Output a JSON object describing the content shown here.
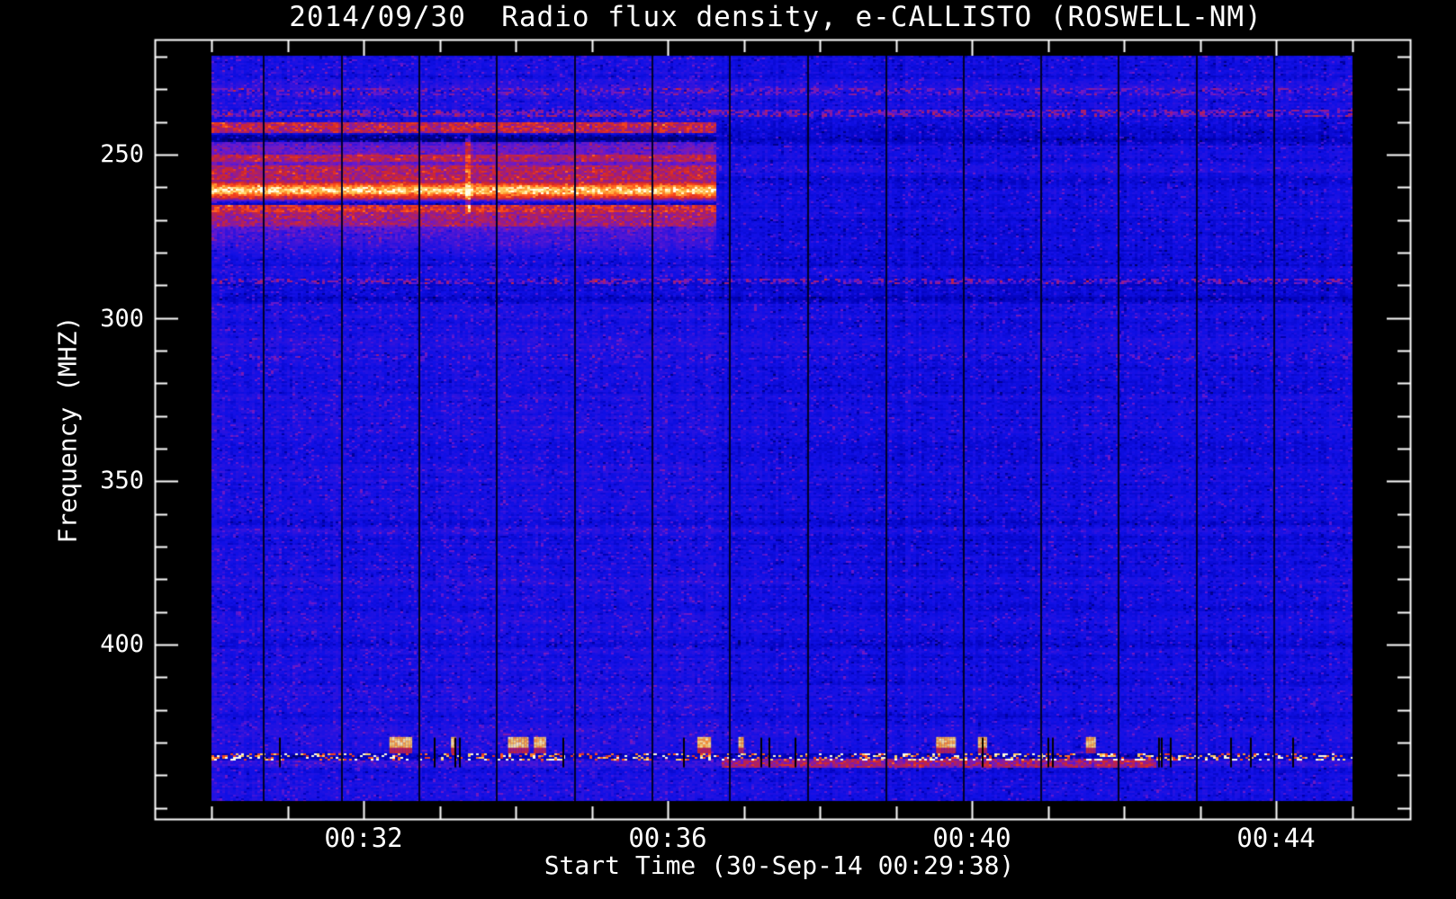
{
  "page": {
    "background": "#000000",
    "text_color": "#ffffff"
  },
  "chart_data": {
    "type": "heatmap",
    "subtype": "radio-spectrogram",
    "title": "2014/09/30  Radio flux density, e-CALLISTO (ROSWELL-NM)",
    "date": "2014/09/30",
    "observatory": "e-CALLISTO (ROSWELL-NM)",
    "xlabel": "Start Time (30-Sep-14 00:29:38)",
    "ylabel": "Frequency (MHZ)",
    "x_axis": {
      "start_time": "00:29:38",
      "major_tick_labels": [
        "00:32",
        "00:36",
        "00:40",
        "00:44"
      ],
      "major_tick_minutes": [
        32,
        36,
        40,
        44
      ],
      "minor_tick_every_min": 1,
      "minor_tick_range_min": [
        30,
        45
      ],
      "axis_range_min": [
        29.3,
        45.7
      ],
      "image_span_min": [
        30.0,
        45.0
      ]
    },
    "y_axis": {
      "major_ticks": [
        250,
        300,
        350,
        400
      ],
      "minor_tick_every_mhz": 10,
      "minor_tick_range_mhz": [
        220,
        450
      ],
      "axis_range_mhz": [
        214.8,
        453.4
      ],
      "image_span_mhz": [
        219.7,
        447.9
      ],
      "inverted": true,
      "unit": "MHz"
    },
    "grid": false,
    "legend": false,
    "colormap": "blue-purple-red-orange-yellow (IDL-like)",
    "palette_stops": [
      [
        0.0,
        [
          0,
          0,
          100
        ]
      ],
      [
        0.06,
        [
          0,
          0,
          180
        ]
      ],
      [
        0.14,
        [
          16,
          16,
          230
        ]
      ],
      [
        0.3,
        [
          105,
          25,
          205
        ]
      ],
      [
        0.45,
        [
          165,
          30,
          115
        ]
      ],
      [
        0.56,
        [
          210,
          40,
          40
        ]
      ],
      [
        0.7,
        [
          255,
          75,
          25
        ]
      ],
      [
        0.82,
        [
          255,
          150,
          45
        ]
      ],
      [
        0.92,
        [
          255,
          215,
          105
        ]
      ],
      [
        1.0,
        [
          255,
          255,
          235
        ]
      ]
    ],
    "background_intensity": 0.135,
    "features": {
      "file_gap_lines_min": [
        30.68,
        31.7,
        32.72,
        33.74,
        34.77,
        35.79,
        36.81,
        37.83,
        38.86,
        39.88,
        40.9,
        41.92,
        42.95,
        43.97
      ],
      "rfi_bands": {
        "t_start_min": 30.0,
        "t_end_min": 36.62,
        "bands": [
          {
            "f0": 240.0,
            "f1": 243.2,
            "kind": "mottle",
            "amp": 0.4
          },
          {
            "f0": 243.4,
            "f1": 245.6,
            "kind": "dark",
            "amp": -0.07
          },
          {
            "f0": 246.0,
            "f1": 252.8,
            "kind": "mottle",
            "amp": 0.15
          },
          {
            "f0": 249.9,
            "f1": 251.7,
            "kind": "mottle",
            "amp": 0.2
          },
          {
            "f0": 253.0,
            "f1": 257.6,
            "kind": "mottle",
            "amp": 0.32
          },
          {
            "f0": 255.5,
            "f1": 266.0,
            "kind": "gauss",
            "amp": 0.64,
            "center": 260.6,
            "sigma": 1.7
          },
          {
            "f0": 257.7,
            "f1": 263.6,
            "kind": "mottle",
            "amp": 0.16
          },
          {
            "f0": 263.8,
            "f1": 265.2,
            "kind": "dark",
            "amp": -0.08
          },
          {
            "f0": 265.4,
            "f1": 267.1,
            "kind": "mottle",
            "amp": 0.44
          },
          {
            "f0": 267.3,
            "f1": 271.5,
            "kind": "mottle",
            "amp": 0.3
          },
          {
            "f0": 271.5,
            "f1": 282.0,
            "kind": "fade",
            "amp": 0.14
          }
        ]
      },
      "bright_streak": {
        "t0": 33.32,
        "t1": 33.4,
        "f0": 244.0,
        "f1": 268.0,
        "amp": 0.22
      },
      "speckle_rows": [
        {
          "f0": 229.3,
          "f1": 231.4,
          "prob": 0.4,
          "amp": 0.2
        },
        {
          "f0": 236.2,
          "f1": 238.0,
          "prob": 0.55,
          "amp": 0.26
        },
        {
          "f0": 287.8,
          "f1": 289.4,
          "prob": 0.5,
          "amp": 0.26
        },
        {
          "f0": 310.8,
          "f1": 312.3,
          "prob": 0.25,
          "amp": 0.14
        }
      ],
      "dark_rows": [
        {
          "f0": 293.3,
          "f1": 295.2,
          "amp": -0.05
        },
        {
          "f0": 244.0,
          "f1": 247.0,
          "amp": -0.03
        }
      ],
      "burst_dash_line": {
        "f0": 432.9,
        "f1": 435.3,
        "bright_prob": 0.3
      },
      "red_smear": {
        "f0": 434.9,
        "f1": 437.4,
        "strong_t": [
          36.7,
          42.4
        ],
        "amp_strong": 0.3,
        "amp_weak": 0.07
      },
      "burst_blobs": {
        "f0": 428.3,
        "f1": 432.8,
        "times_min": [
          [
            32.34,
            32.64
          ],
          [
            33.15,
            33.22
          ],
          [
            33.9,
            34.17
          ],
          [
            34.24,
            34.4
          ],
          [
            36.39,
            36.57
          ],
          [
            36.93,
            37.0
          ],
          [
            39.53,
            39.79
          ],
          [
            40.08,
            40.2
          ],
          [
            41.5,
            41.63
          ]
        ]
      },
      "black_dashes_count": 18
    }
  }
}
